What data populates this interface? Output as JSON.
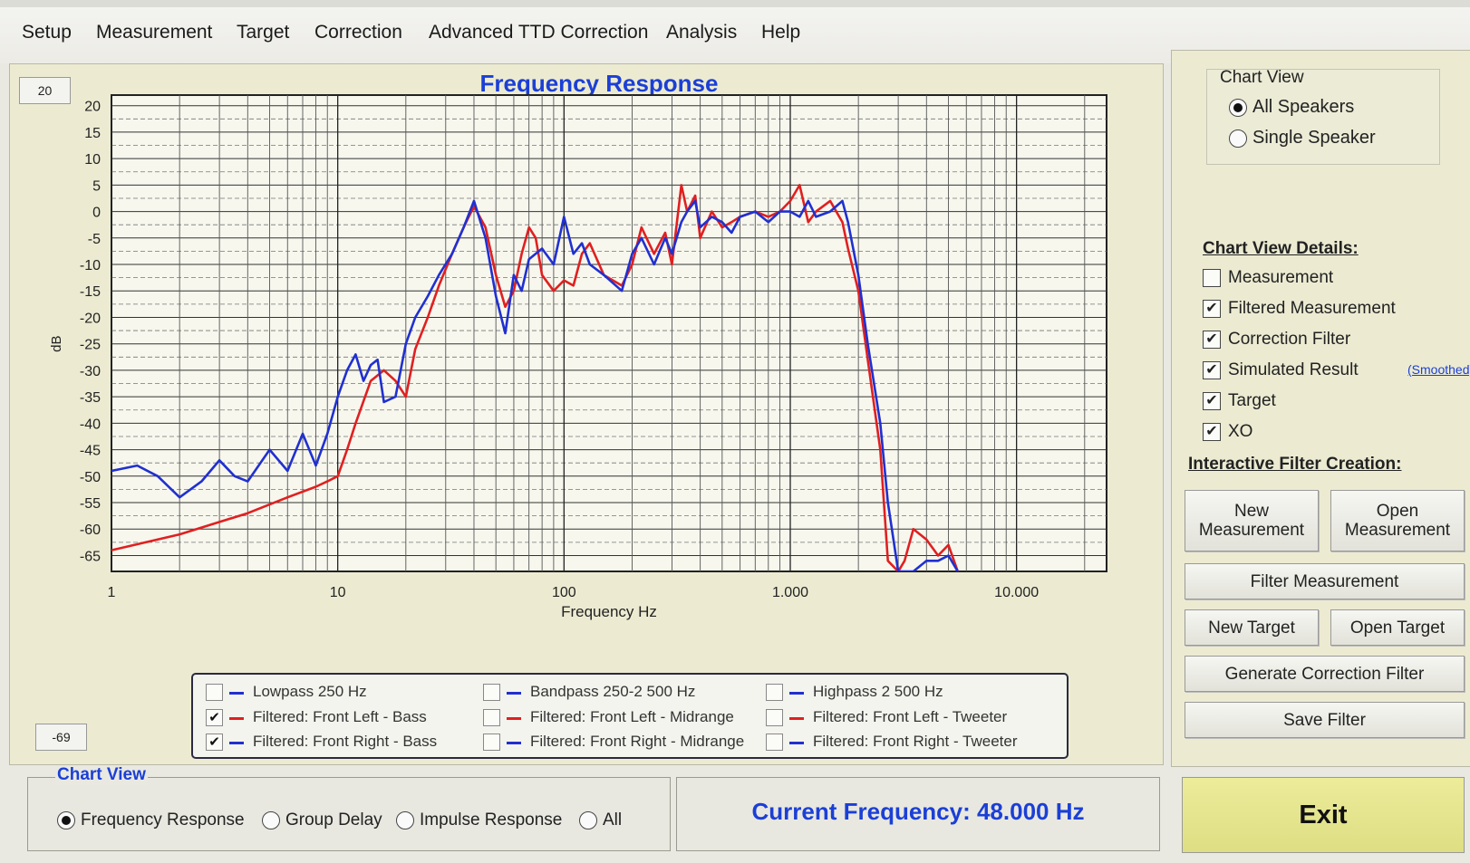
{
  "menu": {
    "items": [
      "Setup",
      "Measurement",
      "Target",
      "Correction",
      "Advanced TTD Correction",
      "Analysis",
      "Help"
    ]
  },
  "chart_panel": {
    "max_box": "20",
    "min_box": "-69"
  },
  "chart_data": {
    "type": "line",
    "title": "Frequency Response",
    "xlabel": "Frequency Hz",
    "ylabel": "dB",
    "x_scale": "log",
    "xlim": [
      1,
      25000
    ],
    "ylim": [
      -68,
      22
    ],
    "x_tick_labels": [
      "1",
      "10",
      "100",
      "1.000",
      "10.000"
    ],
    "y_tick_labels": [
      "20",
      "15",
      "10",
      "5",
      "0",
      "-5",
      "-10",
      "-15",
      "-20",
      "-25",
      "-30",
      "-35",
      "-40",
      "-45",
      "-50",
      "-55",
      "-60",
      "-65"
    ],
    "grid": true,
    "series": [
      {
        "name": "Filtered: Front Left - Bass",
        "color": "#e02020",
        "x": [
          1,
          2,
          4,
          6,
          8,
          9,
          10,
          11,
          12,
          14,
          16,
          18,
          20,
          22,
          25,
          28,
          32,
          36,
          40,
          45,
          50,
          55,
          60,
          65,
          70,
          75,
          80,
          90,
          100,
          110,
          120,
          130,
          150,
          180,
          200,
          220,
          250,
          280,
          300,
          330,
          350,
          380,
          400,
          450,
          500,
          550,
          600,
          700,
          800,
          900,
          1000,
          1100,
          1200,
          1300,
          1500,
          1700,
          1800,
          2000,
          2200,
          2500,
          2700,
          3000,
          3200,
          3500,
          4000,
          4500,
          5000,
          5500
        ],
        "y": [
          -64,
          -61,
          -57,
          -54,
          -52,
          -51,
          -50,
          -45,
          -40,
          -32,
          -30,
          -32,
          -35,
          -26,
          -20,
          -14,
          -8,
          -3,
          1,
          -3,
          -12,
          -18,
          -15,
          -8,
          -3,
          -5,
          -12,
          -15,
          -13,
          -14,
          -8,
          -6,
          -12,
          -14,
          -10,
          -3,
          -8,
          -4,
          -10,
          5,
          0,
          3,
          -5,
          0,
          -3,
          -2,
          -1,
          0,
          -1,
          0,
          2,
          5,
          -2,
          0,
          2,
          -2,
          -7,
          -15,
          -28,
          -45,
          -66,
          -70,
          -66,
          -60,
          -62,
          -65,
          -63,
          -70
        ]
      },
      {
        "name": "Filtered: Front Right - Bass",
        "color": "#2030d0",
        "x": [
          1,
          1.3,
          1.6,
          2,
          2.5,
          3,
          3.5,
          4,
          5,
          6,
          7,
          8,
          9,
          10,
          11,
          12,
          13,
          14,
          15,
          16,
          18,
          20,
          22,
          25,
          28,
          32,
          36,
          40,
          45,
          50,
          55,
          60,
          65,
          70,
          80,
          90,
          100,
          110,
          120,
          130,
          150,
          180,
          200,
          220,
          250,
          280,
          300,
          330,
          350,
          380,
          400,
          450,
          500,
          550,
          600,
          700,
          800,
          900,
          1000,
          1100,
          1200,
          1300,
          1500,
          1700,
          1800,
          2000,
          2200,
          2500,
          2700,
          3000,
          3200,
          3500,
          4000,
          4500,
          5000,
          5500
        ],
        "y": [
          -49,
          -48,
          -50,
          -54,
          -51,
          -47,
          -50,
          -51,
          -45,
          -49,
          -42,
          -48,
          -42,
          -35,
          -30,
          -27,
          -32,
          -29,
          -28,
          -36,
          -35,
          -25,
          -20,
          -16,
          -12,
          -8,
          -3,
          2,
          -5,
          -16,
          -23,
          -12,
          -15,
          -9,
          -7,
          -10,
          -1,
          -8,
          -6,
          -10,
          -12,
          -15,
          -8,
          -5,
          -10,
          -5,
          -8,
          -2,
          0,
          2,
          -3,
          -1,
          -2,
          -4,
          -1,
          0,
          -2,
          0,
          0,
          -1,
          2,
          -1,
          0,
          2,
          -2,
          -12,
          -25,
          -40,
          -55,
          -68,
          -70,
          -68,
          -66,
          -66,
          -65,
          -70
        ]
      }
    ]
  },
  "legend": {
    "items": [
      {
        "label": "Lowpass  250 Hz",
        "checked": false,
        "color": "#2030d0"
      },
      {
        "label": "Bandpass  250-2 500 Hz",
        "checked": false,
        "color": "#2030d0"
      },
      {
        "label": "Highpass  2 500 Hz",
        "checked": false,
        "color": "#2030d0"
      },
      {
        "label": "Filtered: Front Left - Bass",
        "checked": true,
        "color": "#e02020"
      },
      {
        "label": "Filtered: Front Left - Midrange",
        "checked": false,
        "color": "#e02020"
      },
      {
        "label": "Filtered: Front Left - Tweeter",
        "checked": false,
        "color": "#e02020"
      },
      {
        "label": "Filtered: Front Right - Bass",
        "checked": true,
        "color": "#2030d0"
      },
      {
        "label": "Filtered: Front Right - Midrange",
        "checked": false,
        "color": "#2030d0"
      },
      {
        "label": "Filtered: Front Right - Tweeter",
        "checked": false,
        "color": "#2030d0"
      }
    ]
  },
  "bottom_chart_view": {
    "title": "Chart View",
    "options": [
      {
        "label": "Frequency Response",
        "selected": true
      },
      {
        "label": "Group Delay",
        "selected": false
      },
      {
        "label": "Impulse Response",
        "selected": false
      },
      {
        "label": "All",
        "selected": false
      }
    ]
  },
  "current_frequency": "Current Frequency: 48.000 Hz",
  "side": {
    "chart_view": {
      "title": "Chart View",
      "options": [
        {
          "label": "All Speakers",
          "selected": true
        },
        {
          "label": "Single Speaker",
          "selected": false
        }
      ]
    },
    "details_title": "Chart View Details:",
    "details": [
      {
        "label": "Measurement",
        "checked": false
      },
      {
        "label": "Filtered Measurement",
        "checked": true
      },
      {
        "label": "Correction Filter",
        "checked": true
      },
      {
        "label": "Simulated Result",
        "checked": true
      },
      {
        "label": "Target",
        "checked": true
      },
      {
        "label": "XO",
        "checked": true
      }
    ],
    "smoothed_link": "(Smoothed)",
    "interactive_title": "Interactive Filter Creation:",
    "buttons": {
      "new_measurement": "New Measurement",
      "open_measurement": "Open Measurement",
      "filter_measurement": "Filter Measurement",
      "new_target": "New Target",
      "open_target": "Open Target",
      "generate_correction_filter": "Generate Correction Filter",
      "save_filter": "Save Filter"
    }
  },
  "exit_label": "Exit"
}
